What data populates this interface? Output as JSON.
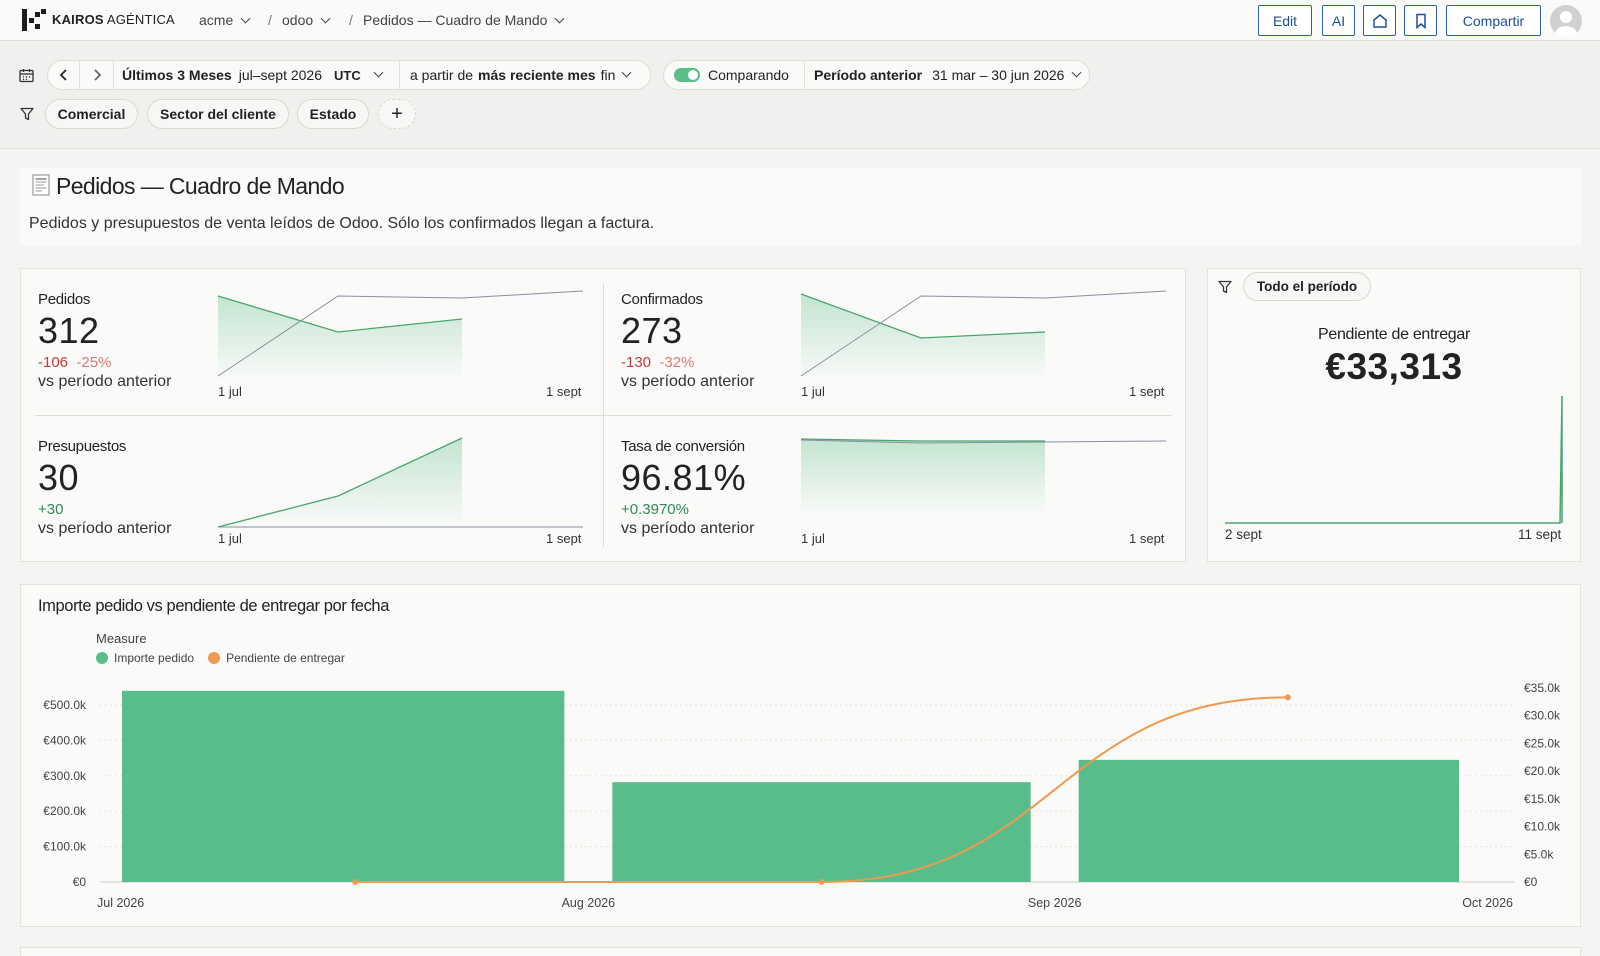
{
  "topbar": {
    "brand_bold": "KAIROS",
    "brand_light": "AGÉNTICA",
    "crumb_org": "acme",
    "crumb_sep1": "/",
    "crumb_project": "odoo",
    "crumb_sep2": "/",
    "crumb_page": "Pedidos — Cuadro de Mando",
    "edit_label": "Edit",
    "ai_label": "AI",
    "share_label": "Compartir"
  },
  "controls": {
    "range_label": "Últimos 3 Meses",
    "range_value": "jul–sept 2026",
    "timezone": "UTC",
    "anchor_prefix": "a partir de",
    "anchor_bold": "más reciente mes",
    "anchor_suffix": "fin",
    "compare_toggle_on": true,
    "compare_label": "Comparando",
    "previous_label": "Período anterior",
    "previous_range": "31 mar – 30 jun 2026",
    "filters": [
      "Comercial",
      "Sector del cliente",
      "Estado"
    ],
    "add_filter": "+"
  },
  "header": {
    "title": "Pedidos — Cuadro de Mando",
    "subtitle": "Pedidos y presupuestos de venta leídos de Odoo. Sólo los confirmados llegan a factura."
  },
  "kpis": [
    {
      "label": "Pedidos",
      "value": "312",
      "delta_abs": "-106",
      "delta_pct": "-25%",
      "trend": "down",
      "vs": "vs período anterior",
      "x_start": "1 jul",
      "x_end": "1 sept"
    },
    {
      "label": "Confirmados",
      "value": "273",
      "delta_abs": "-130",
      "delta_pct": "-32%",
      "trend": "down",
      "vs": "vs período anterior",
      "x_start": "1 jul",
      "x_end": "1 sept"
    },
    {
      "label": "Presupuestos",
      "value": "30",
      "delta_abs": "+30",
      "delta_pct": "",
      "trend": "up",
      "vs": "vs período anterior",
      "x_start": "1 jul",
      "x_end": "1 sept"
    },
    {
      "label": "Tasa de conversión",
      "value": "96.81%",
      "delta_abs": "+0.3970%",
      "delta_pct": "",
      "trend": "up",
      "vs": "vs período anterior",
      "x_start": "1 jul",
      "x_end": "1 sept"
    }
  ],
  "pending": {
    "filter_label": "Todo el período",
    "label": "Pendiente de entregar",
    "value": "€33,313",
    "x_start": "2 sept",
    "x_end": "11 sept"
  },
  "main_chart": {
    "title": "Importe pedido vs pendiente de entregar por fecha",
    "legend_title": "Measure",
    "colors": {
      "bar": "#58bd8a",
      "line": "#ef9a50"
    }
  },
  "chart_data": {
    "type": "bar",
    "title": "Importe pedido vs pendiente de entregar por fecha",
    "legend_placement": "top-left",
    "x_ticks": [
      "Jul 2026",
      "Aug 2026",
      "Sep 2026",
      "Oct 2026"
    ],
    "y_left_ticks": [
      "€0",
      "€100.0k",
      "€200.0k",
      "€300.0k",
      "€400.0k",
      "€500.0k"
    ],
    "y_right_ticks": [
      "€0",
      "€5.0k",
      "€10.0k",
      "€15.0k",
      "€20.0k",
      "€25.0k",
      "€30.0k",
      "€35.0k"
    ],
    "ylim_left": [
      0,
      500000
    ],
    "ylim_right": [
      0,
      35000
    ],
    "grid": true,
    "categories": [
      "Jul 2026",
      "Aug 2026",
      "Sep 2026"
    ],
    "series": [
      {
        "name": "Importe pedido",
        "type": "bar",
        "axis": "left",
        "values": [
          540000,
          282000,
          345000
        ]
      },
      {
        "name": "Pendiente de entregar",
        "type": "line",
        "axis": "right",
        "x": [
          "Jul 2026",
          "Aug 2026",
          "Sep 2026"
        ],
        "values": [
          0,
          0,
          33313
        ]
      }
    ]
  }
}
